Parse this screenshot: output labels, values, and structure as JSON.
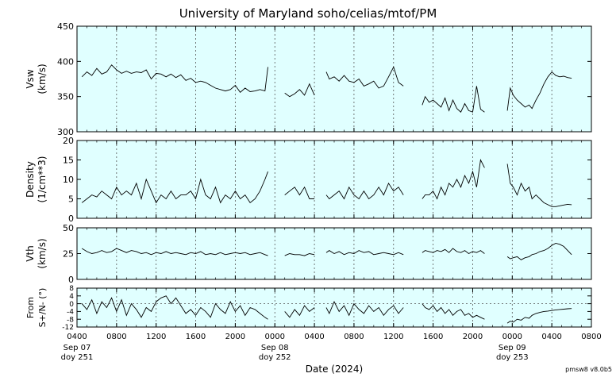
{
  "title": "University of Maryland  soho/celias/mtof/PM",
  "version": "pmsw8 v8.0b5",
  "colors": {
    "panel_bg": "#e0ffff",
    "trace": "#000000",
    "grid": "#555555"
  },
  "chart_data": {
    "type": "line",
    "xlabel": "Date (2024)",
    "x_range_hours": [
      4,
      56
    ],
    "x_ticks": [
      {
        "h": 4,
        "label": "0400",
        "sub": [
          "Sep 07",
          "doy 251"
        ]
      },
      {
        "h": 8,
        "label": "0800"
      },
      {
        "h": 12,
        "label": "1200"
      },
      {
        "h": 16,
        "label": "1600"
      },
      {
        "h": 20,
        "label": "2000"
      },
      {
        "h": 24,
        "label": "0000",
        "sub": [
          "Sep 08",
          "doy 252"
        ]
      },
      {
        "h": 28,
        "label": "0400"
      },
      {
        "h": 32,
        "label": "0800"
      },
      {
        "h": 36,
        "label": "1200"
      },
      {
        "h": 40,
        "label": "1600"
      },
      {
        "h": 44,
        "label": "2000"
      },
      {
        "h": 48,
        "label": "0000",
        "sub": [
          "Sep 09",
          "doy 253"
        ]
      },
      {
        "h": 52,
        "label": "0400"
      },
      {
        "h": 56,
        "label": "0800"
      }
    ],
    "panels": [
      {
        "ylabel": [
          "Vsw",
          "(km/s)"
        ],
        "ylim": [
          300,
          450
        ],
        "yticks": [
          300,
          350,
          400,
          450
        ],
        "segments": [
          {
            "t": [
              4.5,
              5,
              5.5,
              6,
              6.5,
              7,
              7.5,
              8,
              8.5,
              9,
              9.5,
              10,
              10.5,
              11,
              11.5,
              12,
              12.5,
              13,
              13.5,
              14,
              14.5,
              15,
              15.5,
              16,
              16.5,
              17,
              17.5,
              18,
              18.5,
              19,
              19.5,
              20,
              20.5,
              21,
              21.5,
              22,
              22.5,
              23,
              23.3
            ],
            "v": [
              378,
              385,
              380,
              390,
              382,
              385,
              395,
              388,
              383,
              386,
              383,
              385,
              384,
              388,
              375,
              383,
              382,
              378,
              382,
              377,
              381,
              373,
              376,
              370,
              372,
              370,
              366,
              362,
              360,
              358,
              360,
              366,
              356,
              362,
              357,
              358,
              360,
              358,
              392
            ]
          },
          {
            "t": [
              25,
              25.5,
              26,
              26.5,
              27,
              27.5,
              28
            ],
            "v": [
              355,
              350,
              354,
              360,
              352,
              368,
              352
            ]
          },
          {
            "t": [
              29.2,
              29.5,
              30,
              30.5,
              31,
              31.5,
              32,
              32.5,
              33,
              33.5,
              34,
              34.5,
              35,
              35.5,
              36,
              36.5,
              37
            ],
            "v": [
              385,
              375,
              378,
              372,
              380,
              372,
              370,
              375,
              365,
              368,
              372,
              362,
              365,
              378,
              392,
              370,
              365
            ]
          },
          {
            "t": [
              38.9,
              39.2,
              39.6,
              40,
              40.4,
              40.8,
              41.2,
              41.6,
              42,
              42.4,
              42.8,
              43.2,
              43.6,
              44,
              44.4,
              44.8,
              45.2
            ],
            "v": [
              338,
              350,
              342,
              345,
              340,
              335,
              348,
              330,
              345,
              333,
              328,
              340,
              330,
              328,
              365,
              332,
              328
            ]
          },
          {
            "t": [
              47.5,
              47.8,
              48.1,
              48.5,
              48.9,
              49.3,
              49.7,
              50,
              50.4,
              50.8,
              51.2,
              51.6,
              52,
              52.4,
              52.8,
              53.2,
              53.6,
              54
            ],
            "v": [
              330,
              362,
              352,
              345,
              340,
              335,
              338,
              333,
              345,
              355,
              368,
              378,
              385,
              380,
              378,
              379,
              377,
              376
            ]
          }
        ]
      },
      {
        "ylabel": [
          "Density",
          "(1/cm**3)"
        ],
        "ylim": [
          0,
          20
        ],
        "yticks": [
          0,
          5,
          10,
          15,
          20
        ],
        "segments": [
          {
            "t": [
              4.5,
              5,
              5.5,
              6,
              6.5,
              7,
              7.5,
              8,
              8.5,
              9,
              9.5,
              10,
              10.5,
              11,
              11.5,
              12,
              12.5,
              13,
              13.5,
              14,
              14.5,
              15,
              15.5,
              16,
              16.5,
              17,
              17.5,
              18,
              18.5,
              19,
              19.5,
              20,
              20.5,
              21,
              21.5,
              22,
              22.5,
              23,
              23.3
            ],
            "v": [
              4,
              5,
              6,
              5.5,
              7,
              6,
              5,
              8,
              6,
              7,
              6,
              9,
              5,
              10,
              7,
              4,
              6,
              5,
              7,
              5,
              6,
              6,
              7,
              5,
              10,
              6,
              5,
              8,
              4,
              6,
              5,
              7,
              5,
              6,
              4,
              5,
              7,
              10,
              12
            ]
          },
          {
            "t": [
              25,
              25.5,
              26,
              26.5,
              27,
              27.5,
              28
            ],
            "v": [
              6,
              7,
              8,
              6,
              8,
              5,
              5
            ]
          },
          {
            "t": [
              29.2,
              29.5,
              30,
              30.5,
              31,
              31.5,
              32,
              32.5,
              33,
              33.5,
              34,
              34.5,
              35,
              35.5,
              36,
              36.5,
              37
            ],
            "v": [
              6,
              5,
              6,
              7,
              5,
              8,
              6,
              5,
              7,
              5,
              6,
              8,
              6,
              9,
              7,
              8,
              6
            ]
          },
          {
            "t": [
              38.9,
              39.2,
              39.6,
              40,
              40.4,
              40.8,
              41.2,
              41.6,
              42,
              42.4,
              42.8,
              43.2,
              43.6,
              44,
              44.4,
              44.8,
              45.2
            ],
            "v": [
              5,
              6,
              6,
              7,
              5,
              8,
              6,
              9,
              8,
              10,
              8,
              11,
              9,
              12,
              8,
              15,
              13
            ]
          },
          {
            "t": [
              47.5,
              47.8,
              48.1,
              48.5,
              48.9,
              49.3,
              49.7,
              50,
              50.4,
              50.8,
              51.2,
              51.6,
              52,
              52.4,
              52.8,
              53.2,
              53.6,
              54
            ],
            "v": [
              14,
              9,
              8,
              6,
              9,
              7,
              8,
              5,
              6,
              5,
              4,
              3.5,
              3,
              3,
              3.2,
              3.4,
              3.6,
              3.5
            ]
          }
        ]
      },
      {
        "ylabel": [
          "Vth",
          "(km/s)"
        ],
        "ylim": [
          0,
          50
        ],
        "yticks": [
          0,
          25,
          50
        ],
        "segments": [
          {
            "t": [
              4.5,
              5,
              5.5,
              6,
              6.5,
              7,
              7.5,
              8,
              8.5,
              9,
              9.5,
              10,
              10.5,
              11,
              11.5,
              12,
              12.5,
              13,
              13.5,
              14,
              14.5,
              15,
              15.5,
              16,
              16.5,
              17,
              17.5,
              18,
              18.5,
              19,
              19.5,
              20,
              20.5,
              21,
              21.5,
              22,
              22.5,
              23,
              23.3
            ],
            "v": [
              30,
              27,
              25,
              26,
              28,
              26,
              27,
              30,
              28,
              26,
              28,
              27,
              25,
              26,
              24,
              26,
              25,
              27,
              25,
              26,
              25,
              24,
              26,
              25,
              27,
              24,
              25,
              24,
              26,
              24,
              25,
              26,
              25,
              26,
              24,
              25,
              26,
              24,
              23
            ]
          },
          {
            "t": [
              25,
              25.5,
              26,
              26.5,
              27,
              27.5,
              28
            ],
            "v": [
              23,
              25,
              24,
              24,
              23,
              25,
              24
            ]
          },
          {
            "t": [
              29.2,
              29.5,
              30,
              30.5,
              31,
              31.5,
              32,
              32.5,
              33,
              33.5,
              34,
              34.5,
              35,
              35.5,
              36,
              36.5,
              37
            ],
            "v": [
              26,
              28,
              25,
              27,
              24,
              26,
              25,
              28,
              26,
              27,
              24,
              25,
              26,
              25,
              24,
              26,
              24
            ]
          },
          {
            "t": [
              38.9,
              39.2,
              39.6,
              40,
              40.4,
              40.8,
              41.2,
              41.6,
              42,
              42.4,
              42.8,
              43.2,
              43.6,
              44,
              44.4,
              44.8,
              45.2
            ],
            "v": [
              26,
              28,
              27,
              26,
              28,
              27,
              29,
              26,
              30,
              27,
              26,
              28,
              25,
              27,
              26,
              28,
              25
            ]
          },
          {
            "t": [
              47.5,
              47.8,
              48.1,
              48.5,
              48.9,
              49.3,
              49.7,
              50,
              50.4,
              50.8,
              51.2,
              51.6,
              52,
              52.4,
              52.8,
              53.2,
              53.6,
              54
            ],
            "v": [
              22,
              20,
              21,
              22,
              19,
              21,
              22,
              24,
              25,
              27,
              28,
              30,
              33,
              35,
              34,
              32,
              28,
              24
            ]
          }
        ]
      },
      {
        "ylabel": [
          "From",
          "S+/N- (°)"
        ],
        "ylim": [
          -12,
          8
        ],
        "yticks": [
          -12,
          -8,
          -4,
          0,
          4,
          8
        ],
        "ref_line": 0,
        "segments": [
          {
            "t": [
              4.5,
              5,
              5.5,
              6,
              6.5,
              7,
              7.5,
              8,
              8.5,
              9,
              9.5,
              10,
              10.5,
              11,
              11.5,
              12,
              12.5,
              13,
              13.5,
              14,
              14.5,
              15,
              15.5,
              16,
              16.5,
              17,
              17.5,
              18,
              18.5,
              19,
              19.5,
              20,
              20.5,
              21,
              21.5,
              22,
              22.5,
              23,
              23.3
            ],
            "v": [
              0,
              -3,
              2,
              -5,
              1,
              -2,
              3,
              -4,
              2,
              -6,
              0,
              -3,
              -7,
              -2,
              -4,
              1,
              3,
              4,
              0,
              3,
              -1,
              -5,
              -3,
              -6,
              -2,
              -4,
              -7,
              0,
              -3,
              -5,
              1,
              -4,
              -1,
              -6,
              -2,
              -3,
              -5,
              -7,
              -8
            ]
          },
          {
            "t": [
              25,
              25.5,
              26,
              26.5,
              27,
              27.5,
              28
            ],
            "v": [
              -4,
              -7,
              -3,
              -6,
              -1,
              -4,
              -2
            ]
          },
          {
            "t": [
              29.2,
              29.5,
              30,
              30.5,
              31,
              31.5,
              32,
              32.5,
              33,
              33.5,
              34,
              34.5,
              35,
              35.5,
              36,
              36.5,
              37
            ],
            "v": [
              -2,
              -5,
              1,
              -4,
              -1,
              -6,
              0,
              -3,
              -5,
              -1,
              -4,
              -2,
              -6,
              -3,
              -1,
              -5,
              -2
            ]
          },
          {
            "t": [
              38.9,
              39.2,
              39.6,
              40,
              40.4,
              40.8,
              41.2,
              41.6,
              42,
              42.4,
              42.8,
              43.2,
              43.6,
              44,
              44.4,
              44.8,
              45.2
            ],
            "v": [
              0,
              -2,
              -3,
              -1,
              -4,
              -2,
              -5,
              -3,
              -6,
              -4,
              -3,
              -6,
              -5,
              -7,
              -6,
              -7,
              -8
            ]
          },
          {
            "t": [
              47.5,
              47.8,
              48.1,
              48.5,
              48.9,
              49.3,
              49.7,
              50,
              50.4,
              50.8,
              51.2,
              51.6,
              52,
              52.4,
              52.8,
              53.2,
              53.6,
              54
            ],
            "v": [
              -10,
              -9,
              -9.5,
              -8,
              -8.5,
              -7,
              -7.5,
              -6,
              -5,
              -4.5,
              -4,
              -3.8,
              -3.5,
              -3.2,
              -3,
              -2.8,
              -2.6,
              -2.5
            ]
          }
        ]
      }
    ]
  }
}
